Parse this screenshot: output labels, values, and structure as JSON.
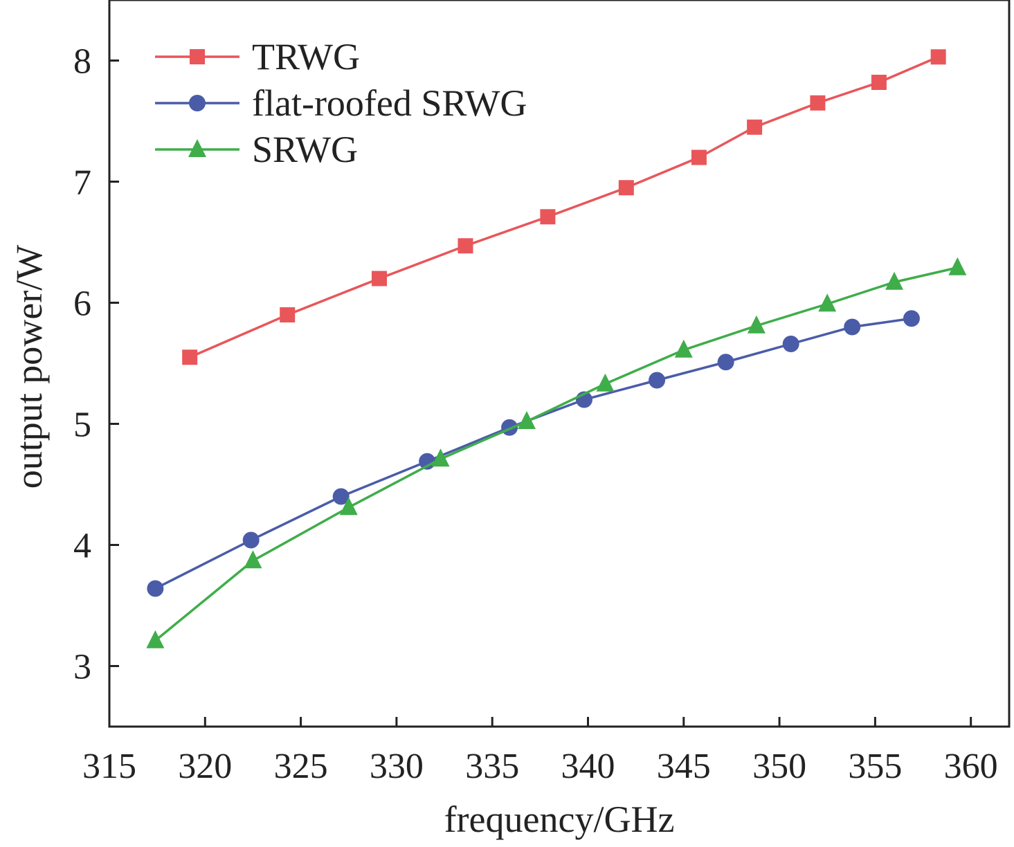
{
  "chart_data": {
    "type": "line",
    "title": "",
    "xlabel": "frequency/GHz",
    "ylabel": "output power/W",
    "xlim": [
      315,
      362
    ],
    "ylim": [
      2.5,
      8.5
    ],
    "xticks": [
      315,
      320,
      325,
      330,
      335,
      340,
      345,
      350,
      355,
      360
    ],
    "yticks": [
      3,
      4,
      5,
      6,
      7,
      8
    ],
    "grid": false,
    "legend_position": "top-left",
    "series": [
      {
        "name": "TRWG",
        "color": "#e8565a",
        "marker": "square",
        "x": [
          319.2,
          324.3,
          329.1,
          333.6,
          337.9,
          342.0,
          345.8,
          348.7,
          352.0,
          355.2,
          358.3
        ],
        "y": [
          5.55,
          5.9,
          6.2,
          6.47,
          6.71,
          6.95,
          7.2,
          7.45,
          7.65,
          7.82,
          8.03
        ]
      },
      {
        "name": "flat-roofed SRWG",
        "color": "#4a5ca8",
        "marker": "circle",
        "x": [
          317.4,
          322.4,
          327.1,
          331.6,
          335.9,
          339.8,
          343.6,
          347.2,
          350.6,
          353.8,
          356.9
        ],
        "y": [
          3.64,
          4.04,
          4.4,
          4.69,
          4.97,
          5.2,
          5.36,
          5.51,
          5.66,
          5.8,
          5.87
        ]
      },
      {
        "name": "SRWG",
        "color": "#3fad4a",
        "marker": "triangle",
        "x": [
          317.4,
          322.5,
          327.5,
          332.3,
          336.8,
          340.9,
          345.0,
          348.8,
          352.5,
          356.0,
          359.3
        ],
        "y": [
          3.21,
          3.87,
          4.31,
          4.71,
          5.02,
          5.33,
          5.61,
          5.81,
          5.99,
          6.17,
          6.29
        ]
      }
    ]
  }
}
